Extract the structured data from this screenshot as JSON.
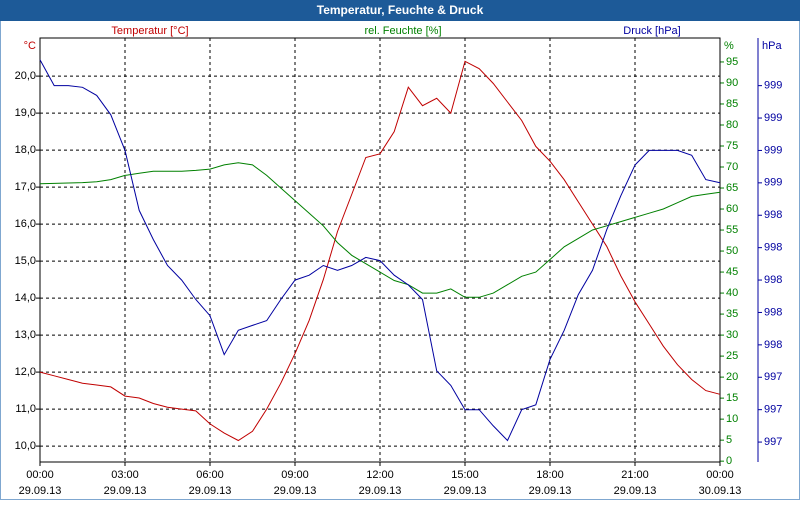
{
  "chart_data": {
    "type": "line",
    "title": "Temperatur, Feuchte & Druck",
    "y_unit": "°C",
    "y2_unit": "%",
    "y3_unit": "hPa",
    "x": [
      0,
      0.5,
      1,
      1.5,
      2,
      2.5,
      3,
      3.5,
      4,
      4.5,
      5,
      5.5,
      6,
      6.5,
      7,
      7.5,
      8,
      8.5,
      9,
      9.5,
      10,
      10.5,
      11,
      11.5,
      12,
      12.5,
      13,
      13.5,
      14,
      14.5,
      15,
      15.5,
      16,
      16.5,
      17,
      17.5,
      18,
      18.5,
      19,
      19.5,
      20,
      20.5,
      21,
      21.5,
      22,
      22.5,
      23,
      23.5,
      24
    ],
    "xlim": [
      0,
      24
    ],
    "xticks": [
      {
        "value": 0,
        "label": "00:00",
        "date": "29.09.13"
      },
      {
        "value": 3,
        "label": "03:00",
        "date": "29.09.13"
      },
      {
        "value": 6,
        "label": "06:00",
        "date": "29.09.13"
      },
      {
        "value": 9,
        "label": "09:00",
        "date": "29.09.13"
      },
      {
        "value": 12,
        "label": "12:00",
        "date": "29.09.13"
      },
      {
        "value": 15,
        "label": "15:00",
        "date": "29.09.13"
      },
      {
        "value": 18,
        "label": "18:00",
        "date": "29.09.13"
      },
      {
        "value": 21,
        "label": "21:00",
        "date": "29.09.13"
      },
      {
        "value": 24,
        "label": "00:00",
        "date": "30.09.13"
      }
    ],
    "ylim": [
      9.57,
      21.03
    ],
    "yticks": [
      {
        "value": 10,
        "label": "10,0"
      },
      {
        "value": 11,
        "label": "11,0"
      },
      {
        "value": 12,
        "label": "12,0"
      },
      {
        "value": 13,
        "label": "13,0"
      },
      {
        "value": 14,
        "label": "14,0"
      },
      {
        "value": 15,
        "label": "15,0"
      },
      {
        "value": 16,
        "label": "16,0"
      },
      {
        "value": 17,
        "label": "17,0"
      },
      {
        "value": 18,
        "label": "18,0"
      },
      {
        "value": 19,
        "label": "19,0"
      },
      {
        "value": 20,
        "label": "20,0"
      }
    ],
    "y2lim": [
      -0.2,
      100.7
    ],
    "y2ticks": [
      0,
      5,
      10,
      15,
      20,
      25,
      30,
      35,
      40,
      45,
      50,
      55,
      60,
      65,
      70,
      75,
      80,
      85,
      90,
      95
    ],
    "y3lim": [
      996.877,
      999.494
    ],
    "y3ticks": [
      {
        "value": 997.0,
        "label": "997"
      },
      {
        "value": 997.2,
        "label": "997"
      },
      {
        "value": 997.4,
        "label": "997"
      },
      {
        "value": 997.6,
        "label": "998"
      },
      {
        "value": 997.8,
        "label": "998"
      },
      {
        "value": 998.0,
        "label": "998"
      },
      {
        "value": 998.2,
        "label": "998"
      },
      {
        "value": 998.4,
        "label": "998"
      },
      {
        "value": 998.6,
        "label": "999"
      },
      {
        "value": 998.8,
        "label": "999"
      },
      {
        "value": 999.0,
        "label": "999"
      },
      {
        "value": 999.2,
        "label": "999"
      }
    ],
    "grid": true,
    "series": [
      {
        "name": "Temperatur [°C]",
        "color": "#c00000",
        "axis": "y",
        "values": [
          12.0,
          11.9,
          11.8,
          11.7,
          11.65,
          11.6,
          11.35,
          11.3,
          11.15,
          11.05,
          11.0,
          10.95,
          10.6,
          10.35,
          10.15,
          10.4,
          11.0,
          11.7,
          12.5,
          13.4,
          14.5,
          15.8,
          16.8,
          17.8,
          17.9,
          18.5,
          19.7,
          19.2,
          19.4,
          19.0,
          20.4,
          20.2,
          19.8,
          19.3,
          18.8,
          18.1,
          17.7,
          17.2,
          16.6,
          16.0,
          15.4,
          14.6,
          13.9,
          13.3,
          12.7,
          12.2,
          11.8,
          11.5,
          11.4
        ]
      },
      {
        "name": "rel. Feuchte [%]",
        "color": "#008000",
        "axis": "y2",
        "values": [
          66,
          66.1,
          66.2,
          66.3,
          66.5,
          67,
          68,
          68.5,
          69,
          69,
          69,
          69.2,
          69.5,
          70.5,
          71,
          70.5,
          68,
          65,
          62,
          59,
          56,
          52,
          49,
          47,
          45,
          43,
          42,
          40,
          40,
          41,
          39,
          39,
          40,
          42,
          44,
          45,
          48,
          51,
          53,
          55,
          56,
          57,
          58,
          59,
          60,
          61.5,
          63,
          63.5,
          64
        ]
      },
      {
        "name": "Druck [hPa]",
        "color": "#0000a0",
        "axis": "y3",
        "values": [
          999.36,
          999.2,
          999.2,
          999.19,
          999.14,
          999.02,
          998.8,
          998.43,
          998.25,
          998.09,
          998.0,
          997.88,
          997.78,
          997.54,
          997.69,
          997.72,
          997.75,
          997.88,
          998.0,
          998.03,
          998.09,
          998.06,
          998.09,
          998.14,
          998.12,
          998.03,
          997.97,
          997.88,
          997.44,
          997.35,
          997.2,
          997.2,
          997.1,
          997.01,
          997.2,
          997.23,
          997.51,
          997.69,
          997.91,
          998.06,
          998.31,
          998.52,
          998.71,
          998.8,
          998.8,
          998.8,
          998.77,
          998.62,
          998.6
        ]
      }
    ]
  }
}
